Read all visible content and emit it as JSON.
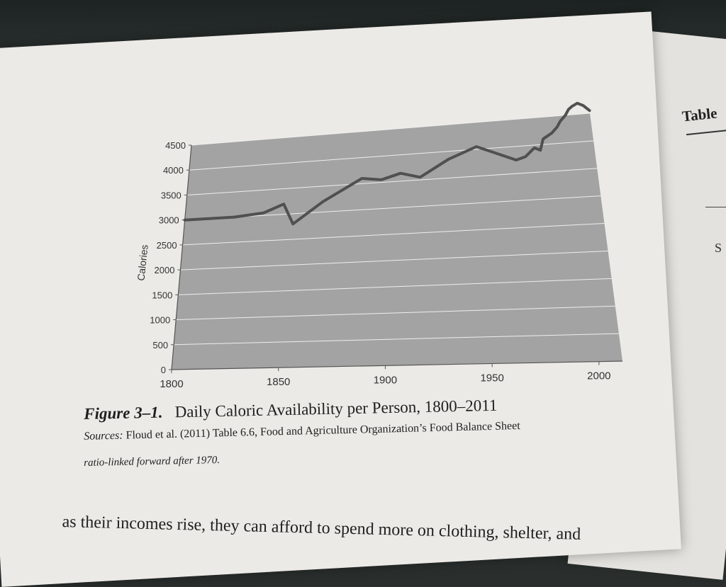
{
  "chart_data": {
    "type": "line",
    "ylabel": "Calories",
    "xlabel": "",
    "xlim": [
      1800,
      2011
    ],
    "ylim": [
      0,
      4500
    ],
    "x_ticks": [
      "1800",
      "1850",
      "1900",
      "1950",
      "2000"
    ],
    "y_ticks": [
      "0",
      "500",
      "1000",
      "1500",
      "2000",
      "2500",
      "3000",
      "3500",
      "4000",
      "4500"
    ],
    "grid": true,
    "series": [
      {
        "x": [
          1800,
          1825,
          1840,
          1850,
          1855,
          1870,
          1890,
          1900,
          1910,
          1920,
          1935,
          1950,
          1960,
          1970,
          1975,
          1980,
          1983,
          1985,
          1990,
          1993,
          1995,
          1998,
          2000,
          2002,
          2005,
          2008,
          2011
        ],
        "values": [
          3000,
          3000,
          3050,
          3200,
          2800,
          3200,
          3600,
          3550,
          3650,
          3550,
          3850,
          4050,
          3900,
          3750,
          3800,
          3950,
          3900,
          4100,
          4200,
          4300,
          4400,
          4500,
          4600,
          4650,
          4700,
          4650,
          4550
        ]
      }
    ]
  },
  "caption": {
    "figure_label": "Figure 3–1.",
    "figure_title": "Daily Caloric Availability per Person, 1800–2011",
    "sources_label": "Sources:",
    "sources_text": " Floud et al. (2011) Table 6.6, Food and Agriculture Organization’s Food Balance Sheet",
    "sources_text_2": "ratio-linked forward after 1970."
  },
  "body_text": "as their incomes rise, they can afford to spend more on clothing, shelter, and",
  "right_page": {
    "title": "Table",
    "letter": "S"
  },
  "colors": {
    "plot_bg": "#a3a3a3",
    "line": "#505050",
    "grid": "#eeeeee",
    "page": "#eceae6"
  }
}
